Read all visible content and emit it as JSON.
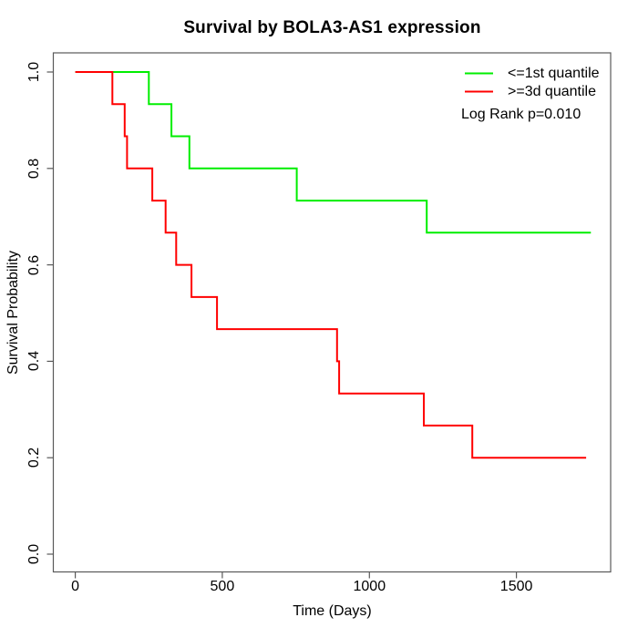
{
  "chart_data": {
    "type": "line",
    "subtype": "kaplan-meier-step",
    "title": "Survival by BOLA3-AS1 expression",
    "xlabel": "Time (Days)",
    "ylabel": "Survival Probability",
    "grid": false,
    "background": "#ffffff",
    "axis_color": "#595959",
    "text_color": "#000000",
    "x_axis": {
      "ticks": [
        0,
        500,
        1000,
        1500
      ],
      "tick_labels": [
        "0",
        "500",
        "1000",
        "1500"
      ],
      "range_days": [
        0,
        1755
      ]
    },
    "y_axis": {
      "ticks": [
        0,
        0.2,
        0.4,
        0.6,
        0.8,
        1.0
      ],
      "tick_labels": [
        "0.0",
        "0.2",
        "0.4",
        "0.6",
        "0.8",
        "1.0"
      ],
      "range": [
        0,
        1
      ]
    },
    "series": [
      {
        "name": "<=1st quantile",
        "color": "#00ee00",
        "start": [
          0,
          1.0
        ],
        "drops": [
          [
            250,
            0.9333
          ],
          [
            327,
            0.8667
          ],
          [
            388,
            0.8
          ],
          [
            753,
            0.7333
          ],
          [
            1195,
            0.6667
          ]
        ],
        "end_time": 1753
      },
      {
        "name": ">=3d quantile",
        "color": "#ff0000",
        "start": [
          0,
          1.0
        ],
        "drops": [
          [
            126,
            0.9333
          ],
          [
            168,
            0.8667
          ],
          [
            176,
            0.8
          ],
          [
            262,
            0.7333
          ],
          [
            307,
            0.6667
          ],
          [
            343,
            0.6
          ],
          [
            395,
            0.5333
          ],
          [
            482,
            0.4667
          ],
          [
            890,
            0.4
          ],
          [
            897,
            0.3333
          ],
          [
            1185,
            0.2667
          ],
          [
            1350,
            0.2
          ]
        ],
        "end_time": 1737
      }
    ],
    "legend": {
      "position": "top-right",
      "items": [
        {
          "label": "<=1st quantile",
          "color": "#00ee00"
        },
        {
          "label": ">=3d quantile",
          "color": "#ff0000"
        }
      ]
    },
    "annotation": "Log Rank p=0.010"
  }
}
